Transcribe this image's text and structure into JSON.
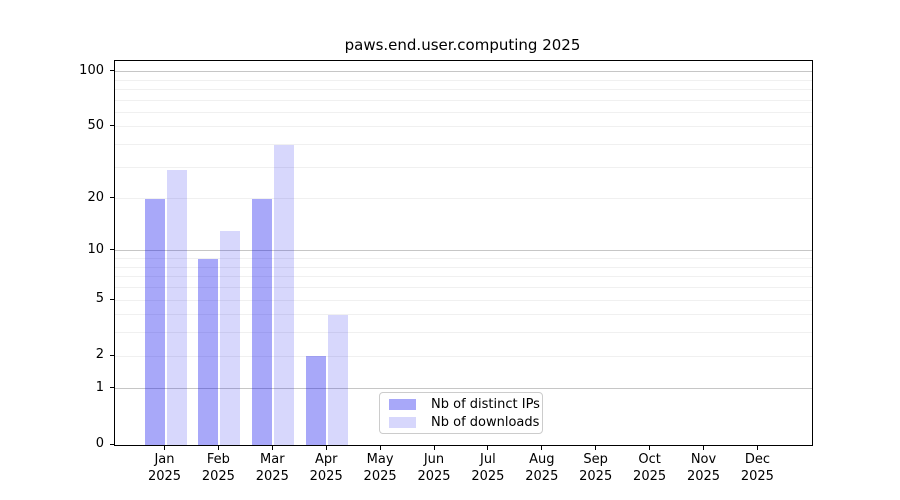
{
  "title": "paws.end.user.computing 2025",
  "chart_data": {
    "type": "bar",
    "title": "paws.end.user.computing 2025",
    "categories": [
      "Jan",
      "Feb",
      "Mar",
      "Apr",
      "May",
      "Jun",
      "Jul",
      "Aug",
      "Sep",
      "Oct",
      "Nov",
      "Dec"
    ],
    "category_year": "2025",
    "series": [
      {
        "name": "Nb of distinct IPs",
        "color": "rgba(0,0,238,0.34)",
        "values": [
          20,
          9,
          20,
          2,
          null,
          null,
          null,
          null,
          null,
          null,
          null,
          null
        ]
      },
      {
        "name": "Nb of downloads",
        "color": "rgba(0,0,238,0.155)",
        "values": [
          29,
          13,
          40,
          4,
          null,
          null,
          null,
          null,
          null,
          null,
          null,
          null
        ]
      }
    ],
    "y_ticks": [
      0,
      1,
      2,
      5,
      10,
      20,
      50,
      100
    ],
    "y_scale": "log10(1+v)",
    "ylim": [
      0,
      100
    ],
    "grid": "horizontal",
    "grid_major_values": [
      1,
      10,
      100
    ],
    "legend_position": "inside-bottom-center",
    "xlabel": "",
    "ylabel": ""
  }
}
